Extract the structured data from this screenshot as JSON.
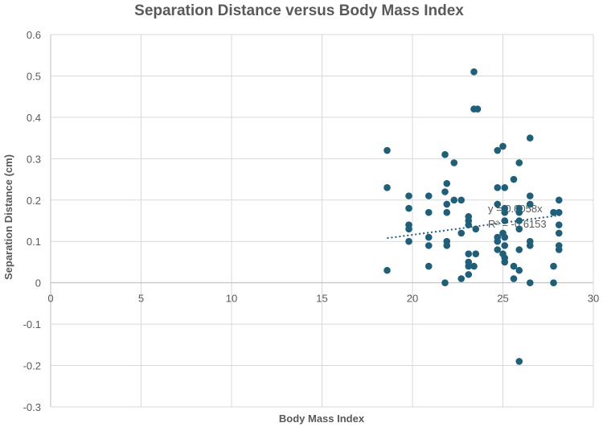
{
  "chart_data": {
    "type": "scatter",
    "title": "Separation Distance versus Body Mass Index",
    "xlabel": "Body Mass Index",
    "ylabel": "Separation Distance (cm)",
    "xlim": [
      0,
      30
    ],
    "ylim": [
      -0.3,
      0.6
    ],
    "x_ticks": [
      0,
      5,
      10,
      15,
      20,
      25,
      30
    ],
    "y_ticks": [
      -0.3,
      -0.2,
      -0.1,
      0,
      0.1,
      0.2,
      0.3,
      0.4,
      0.5,
      0.6
    ],
    "grid": true,
    "colors": {
      "points": "#1f5f7a",
      "trendline": "#1f5f7a",
      "grid": "#d9d9d9",
      "text": "#595959"
    },
    "series": [
      {
        "name": "Separation Distance",
        "points": [
          {
            "x": 18.6,
            "y": 0.32
          },
          {
            "x": 18.6,
            "y": 0.23
          },
          {
            "x": 18.6,
            "y": 0.03
          },
          {
            "x": 19.8,
            "y": 0.21
          },
          {
            "x": 19.8,
            "y": 0.18
          },
          {
            "x": 19.8,
            "y": 0.14
          },
          {
            "x": 19.8,
            "y": 0.13
          },
          {
            "x": 19.8,
            "y": 0.1
          },
          {
            "x": 20.9,
            "y": 0.21
          },
          {
            "x": 20.9,
            "y": 0.17
          },
          {
            "x": 20.9,
            "y": 0.11
          },
          {
            "x": 20.9,
            "y": 0.09
          },
          {
            "x": 20.9,
            "y": 0.04
          },
          {
            "x": 21.8,
            "y": 0.31
          },
          {
            "x": 21.8,
            "y": 0.22
          },
          {
            "x": 21.9,
            "y": 0.24
          },
          {
            "x": 21.9,
            "y": 0.19
          },
          {
            "x": 21.9,
            "y": 0.17
          },
          {
            "x": 21.9,
            "y": 0.1
          },
          {
            "x": 21.9,
            "y": 0.09
          },
          {
            "x": 21.8,
            "y": 0.0
          },
          {
            "x": 22.3,
            "y": 0.29
          },
          {
            "x": 22.3,
            "y": 0.2
          },
          {
            "x": 22.7,
            "y": 0.2
          },
          {
            "x": 22.7,
            "y": 0.12
          },
          {
            "x": 22.7,
            "y": 0.01
          },
          {
            "x": 23.1,
            "y": 0.16
          },
          {
            "x": 23.1,
            "y": 0.15
          },
          {
            "x": 23.1,
            "y": 0.14
          },
          {
            "x": 23.1,
            "y": 0.07
          },
          {
            "x": 23.1,
            "y": 0.05
          },
          {
            "x": 23.1,
            "y": 0.04
          },
          {
            "x": 23.1,
            "y": 0.02
          },
          {
            "x": 23.4,
            "y": 0.51
          },
          {
            "x": 23.4,
            "y": 0.42
          },
          {
            "x": 23.6,
            "y": 0.42
          },
          {
            "x": 23.5,
            "y": 0.13
          },
          {
            "x": 23.5,
            "y": 0.07
          },
          {
            "x": 23.4,
            "y": 0.04
          },
          {
            "x": 24.7,
            "y": 0.32
          },
          {
            "x": 24.7,
            "y": 0.23
          },
          {
            "x": 24.7,
            "y": 0.19
          },
          {
            "x": 24.7,
            "y": 0.11
          },
          {
            "x": 24.7,
            "y": 0.1
          },
          {
            "x": 24.7,
            "y": 0.08
          },
          {
            "x": 25.0,
            "y": 0.33
          },
          {
            "x": 25.1,
            "y": 0.23
          },
          {
            "x": 25.1,
            "y": 0.18
          },
          {
            "x": 25.1,
            "y": 0.17
          },
          {
            "x": 25.1,
            "y": 0.15
          },
          {
            "x": 25.0,
            "y": 0.12
          },
          {
            "x": 25.1,
            "y": 0.11
          },
          {
            "x": 25.1,
            "y": 0.09
          },
          {
            "x": 25.0,
            "y": 0.07
          },
          {
            "x": 25.1,
            "y": 0.06
          },
          {
            "x": 25.1,
            "y": 0.05
          },
          {
            "x": 25.6,
            "y": 0.25
          },
          {
            "x": 25.6,
            "y": 0.04
          },
          {
            "x": 25.6,
            "y": 0.01
          },
          {
            "x": 25.9,
            "y": 0.29
          },
          {
            "x": 25.9,
            "y": 0.18
          },
          {
            "x": 25.9,
            "y": 0.17
          },
          {
            "x": 25.9,
            "y": 0.15
          },
          {
            "x": 25.9,
            "y": 0.13
          },
          {
            "x": 25.9,
            "y": 0.08
          },
          {
            "x": 25.9,
            "y": 0.03
          },
          {
            "x": 25.9,
            "y": -0.19
          },
          {
            "x": 26.5,
            "y": 0.35
          },
          {
            "x": 26.5,
            "y": 0.21
          },
          {
            "x": 26.5,
            "y": 0.19
          },
          {
            "x": 26.5,
            "y": 0.1
          },
          {
            "x": 26.5,
            "y": 0.09
          },
          {
            "x": 26.5,
            "y": 0.0
          },
          {
            "x": 27.8,
            "y": 0.17
          },
          {
            "x": 27.8,
            "y": 0.04
          },
          {
            "x": 27.8,
            "y": 0.0
          },
          {
            "x": 28.1,
            "y": 0.2
          },
          {
            "x": 28.1,
            "y": 0.17
          },
          {
            "x": 28.1,
            "y": 0.14
          },
          {
            "x": 28.1,
            "y": 0.12
          },
          {
            "x": 28.1,
            "y": 0.09
          },
          {
            "x": 28.1,
            "y": 0.08
          }
        ]
      }
    ],
    "trendline": {
      "x_range": [
        18.6,
        28.2
      ],
      "slope": 0.0058,
      "intercept": 0.0,
      "equation": "y = 0.0058x",
      "r_squared": "R² = -0.6153"
    }
  }
}
